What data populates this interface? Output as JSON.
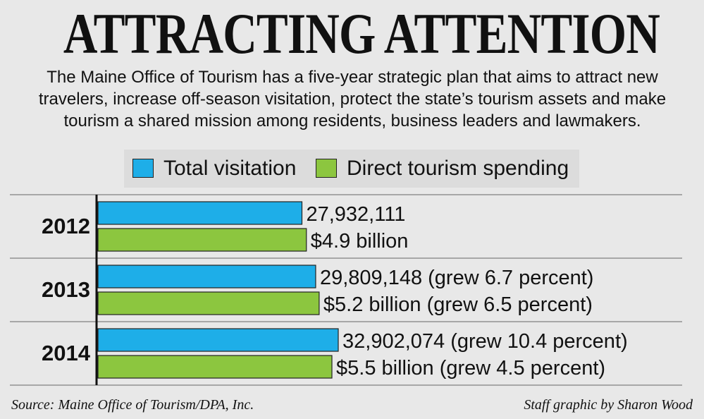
{
  "title": "ATTRACTING ATTENTION",
  "subtitle": "The Maine Office of Tourism has a five-year strategic plan that aims to attract new travelers, increase off-season visitation, protect the state’s tourism assets and make tourism a shared mission among residents, business leaders and lawmakers.",
  "legend": [
    {
      "label": "Total visitation",
      "color": "#1eaee8"
    },
    {
      "label": "Direct tourism spending",
      "color": "#8cc63f"
    }
  ],
  "chart_data": {
    "type": "bar",
    "orientation": "horizontal",
    "categories": [
      "2012",
      "2013",
      "2014"
    ],
    "series": [
      {
        "name": "Total visitation",
        "color": "#1eaee8",
        "values": [
          27932111,
          29809148,
          32902074
        ],
        "labels": [
          "27,932,111",
          "29,809,148 (grew 6.7 percent)",
          "32,902,074 (grew 10.4 percent)"
        ]
      },
      {
        "name": "Direct tourism spending",
        "color": "#8cc63f",
        "values": [
          4.9,
          5.2,
          5.5
        ],
        "labels": [
          "$4.9 billion",
          "$5.2 billion (grew 6.5 percent)",
          "$5.5 billion (grew 4.5 percent)"
        ]
      }
    ],
    "grid": false,
    "legend_position": "top"
  },
  "source": "Source: Maine Office of Tourism/DPA, Inc.",
  "credit": "Staff graphic by Sharon Wood"
}
